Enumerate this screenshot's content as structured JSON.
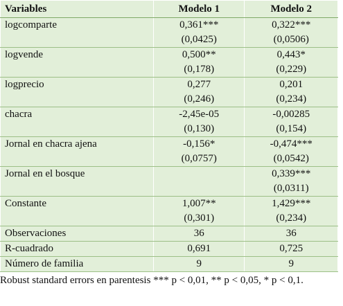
{
  "table": {
    "header": [
      "Variables",
      "Modelo 1",
      "Modelo 2"
    ],
    "rows": [
      {
        "variable": "logcomparte",
        "values": [
          [
            "0,361***",
            "(0,0425)"
          ],
          [
            "0,322***",
            "(0,0506)"
          ]
        ]
      },
      {
        "variable": "logvende",
        "values": [
          [
            "0,500**",
            "(0,178)"
          ],
          [
            "0,443*",
            "(0,229)"
          ]
        ]
      },
      {
        "variable": "logprecio",
        "values": [
          [
            "0,277",
            "(0,246)"
          ],
          [
            "0,201",
            "(0,234)"
          ]
        ]
      },
      {
        "variable": "chacra",
        "values": [
          [
            "-2,45e-05",
            "(0,130)"
          ],
          [
            "-0,00285",
            "(0,154)"
          ]
        ]
      },
      {
        "variable": "Jornal en chacra ajena",
        "values": [
          [
            "-0,156*",
            "(0,0757)"
          ],
          [
            "-0,474***",
            "(0,0542)"
          ]
        ]
      },
      {
        "variable": "Jornal en el bosque",
        "values": [
          [],
          [
            "0,339***",
            "(0,0311)"
          ]
        ]
      },
      {
        "variable": "Constante",
        "values": [
          [
            "1,007**",
            "(0,301)"
          ],
          [
            "1,429***",
            "(0,234)"
          ]
        ]
      },
      {
        "variable": "Observaciones",
        "values": [
          [
            "36"
          ],
          [
            "36"
          ]
        ]
      },
      {
        "variable": "R-cuadrado",
        "values": [
          [
            "0,691"
          ],
          [
            "0,725"
          ]
        ]
      },
      {
        "variable": "Número de familia",
        "values": [
          [
            "9"
          ],
          [
            "9"
          ]
        ]
      }
    ],
    "note": "Robust standard errors en parentesis *** p < 0,01, ** p < 0,05, * p < 0,1."
  }
}
